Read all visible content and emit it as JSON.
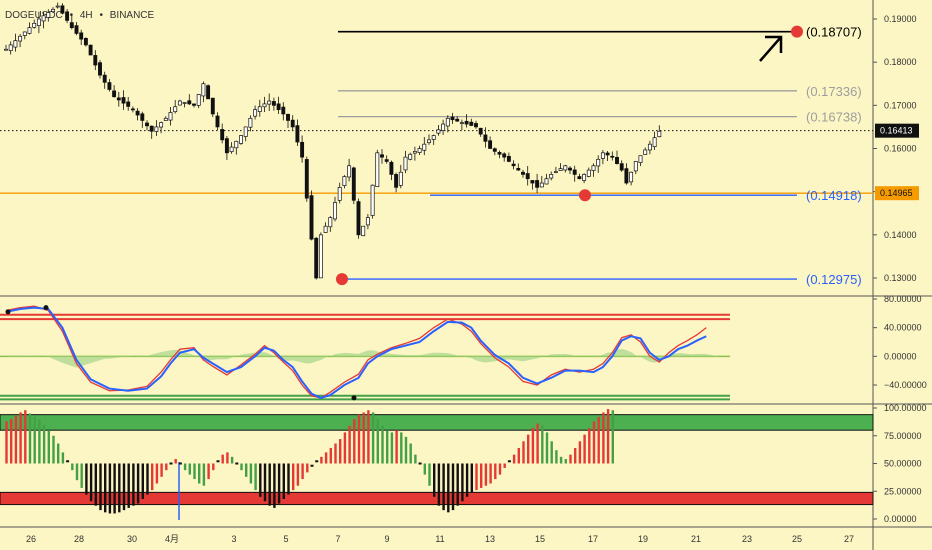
{
  "header": {
    "symbol": "DOGEUSDC",
    "interval": "4H",
    "exchange": "BINANCE",
    "separator": "•"
  },
  "chart_data": [
    {
      "type": "candlestick",
      "pane": "price",
      "y_ticks": [
        "0.19000",
        "0.18000",
        "0.17000",
        "0.16000",
        "0.15000",
        "0.14000",
        "0.13000"
      ],
      "ylim": [
        0.1265,
        0.1915
      ],
      "x_ticks": [
        "26",
        "28",
        "30",
        "4月",
        "3",
        "5",
        "7",
        "9",
        "11",
        "13",
        "15",
        "17",
        "19",
        "21",
        "23",
        "25",
        "27"
      ],
      "current_price": "0.16413",
      "orange_line_price": "0.14965",
      "levels": [
        {
          "label": "(0.18707)",
          "value": 0.18707,
          "color": "#000000"
        },
        {
          "label": "(0.17336)",
          "value": 0.17336,
          "color": "#9e9e9e"
        },
        {
          "label": "(0.16738)",
          "value": 0.16738,
          "color": "#9e9e9e"
        },
        {
          "label": "(0.14918)",
          "value": 0.14918,
          "color": "#2962ff"
        },
        {
          "label": "(0.12975)",
          "value": 0.12975,
          "color": "#2962ff"
        }
      ],
      "marked_points": [
        {
          "x_index": 66,
          "value": 0.12975
        },
        {
          "x_index": 113,
          "value": 0.14918
        },
        {
          "x_index": 154,
          "value": 0.18707
        }
      ],
      "price_path": [
        [
          0,
          0.183
        ],
        [
          3,
          0.186
        ],
        [
          7,
          0.19
        ],
        [
          11,
          0.193
        ],
        [
          14,
          0.188
        ],
        [
          17,
          0.184
        ],
        [
          20,
          0.177
        ],
        [
          23,
          0.172
        ],
        [
          27,
          0.169
        ],
        [
          31,
          0.164
        ],
        [
          34,
          0.167
        ],
        [
          37,
          0.171
        ],
        [
          40,
          0.17
        ],
        [
          42,
          0.175
        ],
        [
          44,
          0.168
        ],
        [
          47,
          0.159
        ],
        [
          50,
          0.163
        ],
        [
          53,
          0.169
        ],
        [
          56,
          0.171
        ],
        [
          59,
          0.168
        ],
        [
          61,
          0.165
        ],
        [
          63,
          0.158
        ],
        [
          65,
          0.139
        ],
        [
          66,
          0.13
        ],
        [
          67,
          0.14
        ],
        [
          69,
          0.144
        ],
        [
          71,
          0.151
        ],
        [
          73,
          0.156
        ],
        [
          75,
          0.14
        ],
        [
          77,
          0.144
        ],
        [
          79,
          0.159
        ],
        [
          81,
          0.157
        ],
        [
          83,
          0.151
        ],
        [
          85,
          0.158
        ],
        [
          88,
          0.16
        ],
        [
          91,
          0.163
        ],
        [
          94,
          0.167
        ],
        [
          97,
          0.166
        ],
        [
          100,
          0.165
        ],
        [
          103,
          0.16
        ],
        [
          106,
          0.158
        ],
        [
          109,
          0.155
        ],
        [
          113,
          0.151
        ],
        [
          116,
          0.154
        ],
        [
          119,
          0.156
        ],
        [
          122,
          0.153
        ],
        [
          125,
          0.156
        ],
        [
          127,
          0.159
        ],
        [
          129,
          0.158
        ],
        [
          131,
          0.155
        ],
        [
          132,
          0.152
        ],
        [
          134,
          0.157
        ],
        [
          137,
          0.161
        ],
        [
          139,
          0.164
        ]
      ]
    },
    {
      "type": "line",
      "pane": "stochastic",
      "y_ticks": [
        "80.00000",
        "40.00000",
        "0.00000",
        "−40.00000"
      ],
      "ylim": [
        -63,
        80
      ],
      "bands": {
        "upper": [
          58,
          52
        ],
        "lower": [
          -55,
          -60
        ]
      },
      "series": [
        {
          "color": "#2962ff",
          "points": [
            [
              0,
              62
            ],
            [
              3,
              66
            ],
            [
              6,
              68
            ],
            [
              9,
              66
            ],
            [
              12,
              40
            ],
            [
              15,
              -5
            ],
            [
              18,
              -32
            ],
            [
              22,
              -45
            ],
            [
              26,
              -48
            ],
            [
              30,
              -45
            ],
            [
              33,
              -28
            ],
            [
              35,
              -10
            ],
            [
              37,
              5
            ],
            [
              40,
              10
            ],
            [
              42,
              -2
            ],
            [
              44,
              -10
            ],
            [
              47,
              -22
            ],
            [
              50,
              -15
            ],
            [
              53,
              0
            ],
            [
              55,
              12
            ],
            [
              57,
              8
            ],
            [
              59,
              -5
            ],
            [
              61,
              -15
            ],
            [
              63,
              -35
            ],
            [
              65,
              -52
            ],
            [
              67,
              -58
            ],
            [
              69,
              -54
            ],
            [
              72,
              -40
            ],
            [
              75,
              -30
            ],
            [
              77,
              -10
            ],
            [
              79,
              0
            ],
            [
              82,
              10
            ],
            [
              85,
              15
            ],
            [
              88,
              20
            ],
            [
              91,
              35
            ],
            [
              94,
              48
            ],
            [
              97,
              47
            ],
            [
              99,
              40
            ],
            [
              101,
              22
            ],
            [
              104,
              2
            ],
            [
              107,
              -10
            ],
            [
              110,
              -30
            ],
            [
              113,
              -38
            ],
            [
              116,
              -30
            ],
            [
              119,
              -20
            ],
            [
              122,
              -20
            ],
            [
              125,
              -22
            ],
            [
              127,
              -15
            ],
            [
              129,
              0
            ],
            [
              131,
              22
            ],
            [
              133,
              28
            ],
            [
              135,
              25
            ],
            [
              137,
              5
            ],
            [
              139,
              -5
            ],
            [
              141,
              0
            ],
            [
              143,
              10
            ],
            [
              145,
              15
            ],
            [
              147,
              22
            ],
            [
              149,
              28
            ]
          ]
        },
        {
          "color": "#e53935",
          "points": [
            [
              0,
              64
            ],
            [
              3,
              68
            ],
            [
              6,
              70
            ],
            [
              9,
              64
            ],
            [
              12,
              35
            ],
            [
              15,
              -10
            ],
            [
              18,
              -36
            ],
            [
              22,
              -48
            ],
            [
              26,
              -47
            ],
            [
              30,
              -42
            ],
            [
              33,
              -22
            ],
            [
              35,
              -5
            ],
            [
              37,
              10
            ],
            [
              40,
              12
            ],
            [
              42,
              -5
            ],
            [
              44,
              -14
            ],
            [
              47,
              -26
            ],
            [
              50,
              -12
            ],
            [
              53,
              3
            ],
            [
              55,
              15
            ],
            [
              57,
              5
            ],
            [
              59,
              -8
            ],
            [
              61,
              -20
            ],
            [
              63,
              -40
            ],
            [
              65,
              -55
            ],
            [
              67,
              -58
            ],
            [
              69,
              -50
            ],
            [
              72,
              -36
            ],
            [
              75,
              -25
            ],
            [
              77,
              -5
            ],
            [
              79,
              3
            ],
            [
              82,
              12
            ],
            [
              85,
              18
            ],
            [
              88,
              25
            ],
            [
              91,
              40
            ],
            [
              94,
              52
            ],
            [
              97,
              45
            ],
            [
              99,
              35
            ],
            [
              101,
              18
            ],
            [
              104,
              -2
            ],
            [
              107,
              -15
            ],
            [
              110,
              -35
            ],
            [
              113,
              -40
            ],
            [
              116,
              -26
            ],
            [
              119,
              -18
            ],
            [
              122,
              -22
            ],
            [
              125,
              -18
            ],
            [
              127,
              -10
            ],
            [
              129,
              5
            ],
            [
              131,
              26
            ],
            [
              133,
              30
            ],
            [
              135,
              20
            ],
            [
              137,
              0
            ],
            [
              139,
              -8
            ],
            [
              141,
              5
            ],
            [
              143,
              15
            ],
            [
              145,
              22
            ],
            [
              147,
              30
            ],
            [
              149,
              40
            ]
          ]
        }
      ]
    },
    {
      "type": "bar",
      "pane": "oscillator",
      "y_ticks": [
        "100.00000",
        "75.00000",
        "50.00000",
        "25.00000",
        "0.00000"
      ],
      "ylim": [
        -5,
        102
      ],
      "zones": [
        {
          "from": 80,
          "to": 94,
          "color": "#4caf50"
        },
        {
          "from": 13,
          "to": 24,
          "color": "#e53935"
        }
      ],
      "values": [
        88,
        90,
        93,
        96,
        98,
        95,
        92,
        90,
        85,
        80,
        75,
        68,
        60,
        52,
        44,
        35,
        28,
        22,
        16,
        12,
        8,
        6,
        5,
        5,
        6,
        8,
        10,
        12,
        14,
        18,
        22,
        26,
        32,
        38,
        44,
        50,
        54,
        50,
        44,
        40,
        36,
        32,
        30,
        36,
        44,
        52,
        58,
        60,
        56,
        50,
        44,
        38,
        32,
        26,
        20,
        16,
        12,
        10,
        14,
        18,
        22,
        26,
        30,
        36,
        42,
        48,
        52,
        56,
        60,
        64,
        68,
        72,
        78,
        84,
        90,
        94,
        96,
        98,
        96,
        90,
        84,
        80,
        78,
        80,
        78,
        74,
        68,
        58,
        50,
        40,
        30,
        20,
        12,
        8,
        6,
        8,
        12,
        16,
        20,
        24,
        26,
        28,
        30,
        32,
        36,
        40,
        46,
        52,
        58,
        64,
        70,
        76,
        82,
        86,
        84,
        78,
        70,
        62,
        56,
        54,
        58,
        64,
        70,
        76,
        82,
        88,
        92,
        96,
        99,
        98
      ]
    }
  ]
}
